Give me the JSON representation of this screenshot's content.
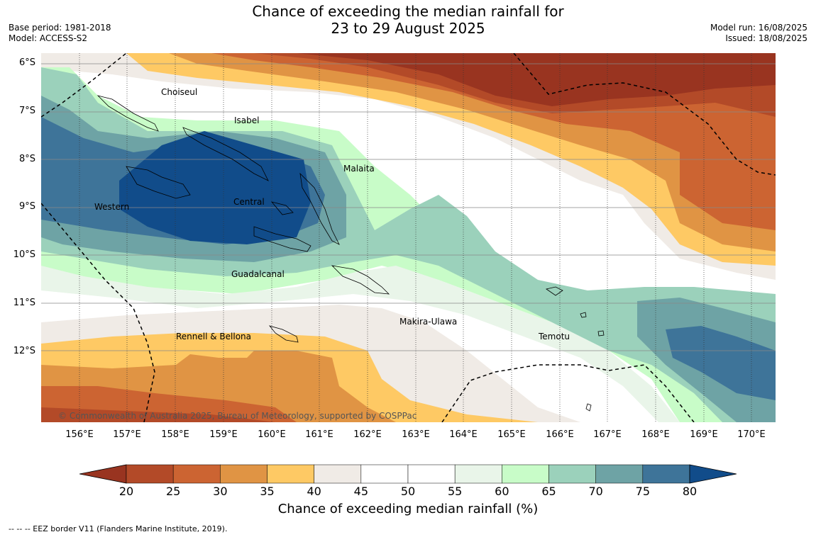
{
  "header": {
    "title_line1": "Chance of exceeding the median rainfall for",
    "title_line2": "23 to 29 August 2025",
    "base_period": "Base period: 1981-2018",
    "model": "Model: ACCESS-S2",
    "model_run": "Model run: 16/08/2025",
    "issued": "Issued: 18/08/2025"
  },
  "map": {
    "lat_labels": [
      "6°S",
      "7°S",
      "8°S",
      "9°S",
      "10°S",
      "11°S",
      "12°S"
    ],
    "lon_labels": [
      "156°E",
      "157°E",
      "158°E",
      "159°E",
      "160°E",
      "161°E",
      "162°E",
      "163°E",
      "164°E",
      "165°E",
      "166°E",
      "167°E",
      "168°E",
      "169°E",
      "170°E"
    ],
    "regions": [
      "Choiseul",
      "Isabel",
      "Malaita",
      "Western",
      "Central",
      "Guadalcanal",
      "Makira-Ulawa",
      "Rennell & Bellona",
      "Temotu"
    ],
    "copyright": "© Commonwealth of Australia 2025, Bureau of Meteorology, supported by COSPPac"
  },
  "colorbar": {
    "ticks": [
      "20",
      "25",
      "30",
      "35",
      "40",
      "45",
      "50",
      "55",
      "60",
      "65",
      "70",
      "75",
      "80"
    ],
    "colors": [
      "#993420",
      "#b34a28",
      "#cc6432",
      "#e09444",
      "#fec964",
      "#f0ebe6",
      "#ffffff",
      "#ffffff",
      "#e9f5e9",
      "#c8fcc8",
      "#9bd1bb",
      "#6ea3a5",
      "#3e7499",
      "#114c8a"
    ],
    "label": "Chance of exceeding median rainfall (%)"
  },
  "footer": {
    "eez_note": "--  --  -- EEZ border V11 (Flanders Marine Institute, 2019)."
  }
}
